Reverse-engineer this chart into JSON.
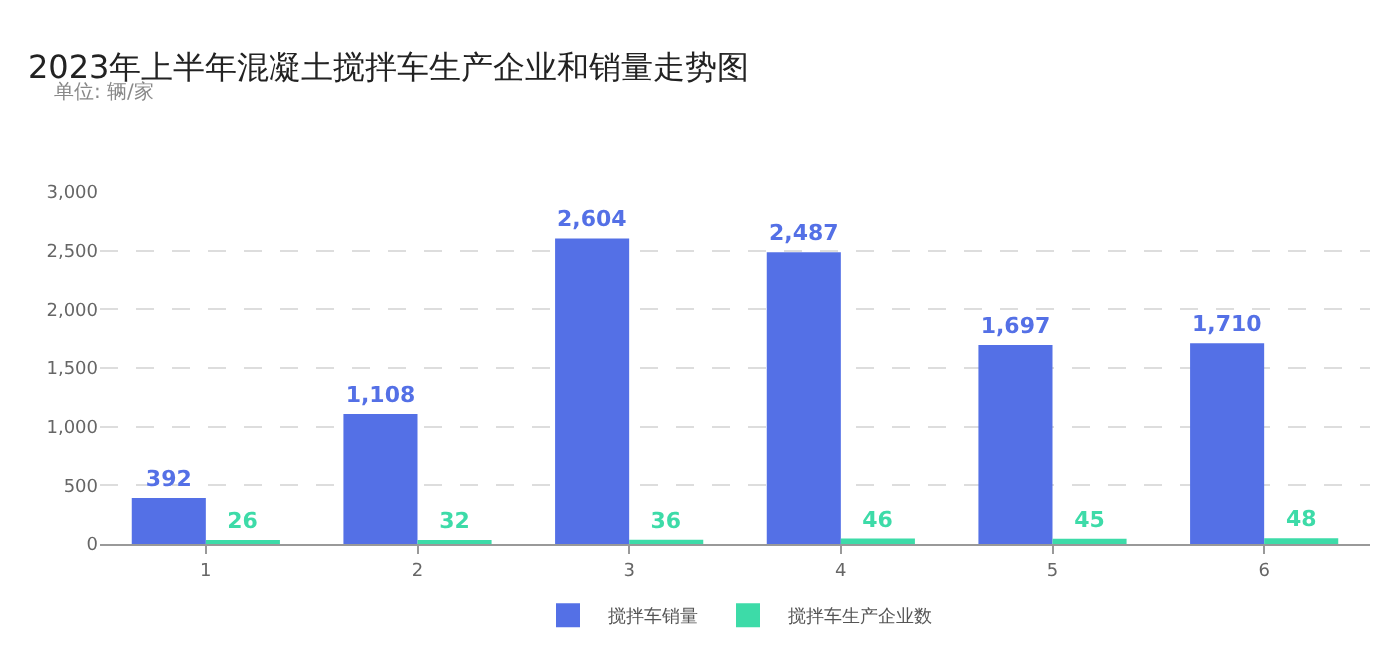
{
  "chart_data": {
    "type": "bar",
    "title": "2023年上半年混凝土搅拌车生产企业和销量走势图",
    "subtitle": "单位: 辆/家",
    "categories": [
      "1",
      "2",
      "3",
      "4",
      "5",
      "6"
    ],
    "series": [
      {
        "name": "搅拌车销量",
        "color": "#5470e6",
        "values": [
          392,
          1108,
          2604,
          2487,
          1697,
          1710
        ],
        "value_labels": [
          "392",
          "1,108",
          "2,604",
          "2,487",
          "1,697",
          "1,710"
        ]
      },
      {
        "name": "搅拌车生产企业数",
        "color": "#3ddba8",
        "values": [
          26,
          32,
          36,
          46,
          45,
          48
        ],
        "value_labels": [
          "26",
          "32",
          "36",
          "46",
          "45",
          "48"
        ]
      }
    ],
    "ylim": [
      0,
      3000
    ],
    "yticks": [
      0,
      500,
      {
        "value": 1000,
        "label": "1,000"
      },
      {
        "value": 1500,
        "label": "1,500"
      },
      {
        "value": 2000,
        "label": "2,000"
      },
      {
        "value": 2500,
        "label": "2,500"
      },
      {
        "value": 3000,
        "label": "3,000"
      }
    ],
    "grid": "y",
    "legend": "bottom"
  }
}
